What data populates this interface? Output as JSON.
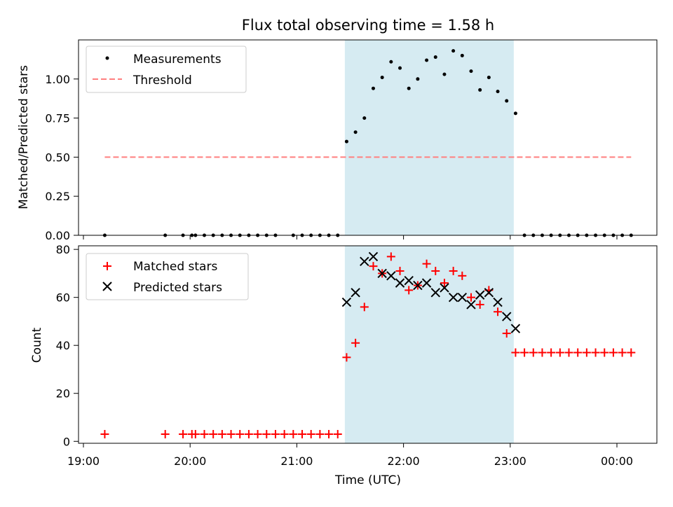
{
  "chart_data": {
    "type": "scatter",
    "title": "Flux total observing time = 1.58 h",
    "xlabel": "Time (UTC)",
    "x_ticks": [
      "19:00",
      "20:00",
      "21:00",
      "22:00",
      "23:00",
      "00:00"
    ],
    "highlight_span": {
      "start": "21:27",
      "end": "23:02",
      "color": "#add8e6"
    },
    "legend_position": "top-left",
    "colors": {
      "measurement": "#000000",
      "threshold": "#ff7f7f",
      "matched": "#ff0000",
      "predicted": "#000000"
    },
    "panels": [
      {
        "ylabel": "Matched/Predicted stars",
        "ylim": [
          0,
          1.25
        ],
        "y_ticks": [
          "0.00",
          "0.25",
          "0.50",
          "0.75",
          "1.00"
        ],
        "series": [
          {
            "name": "Measurements",
            "marker": "dot",
            "x": [
              "19:12",
              "19:46",
              "19:56",
              "20:01",
              "20:03",
              "20:08",
              "20:13",
              "20:18",
              "20:23",
              "20:28",
              "20:33",
              "20:38",
              "20:43",
              "20:48",
              "20:58",
              "21:03",
              "21:08",
              "21:13",
              "21:18",
              "21:23",
              "21:28",
              "21:33",
              "21:38",
              "21:43",
              "21:48",
              "21:53",
              "21:58",
              "22:03",
              "22:08",
              "22:13",
              "22:18",
              "22:23",
              "22:28",
              "22:33",
              "22:38",
              "22:43",
              "22:48",
              "22:53",
              "22:58",
              "23:03",
              "23:08",
              "23:13",
              "23:18",
              "23:23",
              "23:28",
              "23:33",
              "23:38",
              "23:43",
              "23:48",
              "23:53",
              "23:58",
              "00:03",
              "00:08"
            ],
            "y": [
              0,
              0,
              0,
              0,
              0,
              0,
              0,
              0,
              0,
              0,
              0,
              0,
              0,
              0,
              0,
              0,
              0,
              0,
              0,
              0,
              0.6,
              0.66,
              0.75,
              0.94,
              1.01,
              1.11,
              1.07,
              0.94,
              1.0,
              1.12,
              1.14,
              1.03,
              1.18,
              1.15,
              1.05,
              0.93,
              1.01,
              0.92,
              0.86,
              0.78,
              0,
              0,
              0,
              0,
              0,
              0,
              0,
              0,
              0,
              0,
              0,
              0,
              0
            ]
          },
          {
            "name": "Threshold",
            "marker": "dashed-line",
            "x": [
              "19:12",
              "00:08"
            ],
            "y": [
              0.5,
              0.5
            ]
          }
        ]
      },
      {
        "ylabel": "Count",
        "ylim": [
          0,
          80
        ],
        "y_ticks": [
          "0",
          "20",
          "40",
          "60",
          "80"
        ],
        "series": [
          {
            "name": "Matched stars",
            "marker": "plus",
            "x": [
              "19:12",
              "19:46",
              "19:56",
              "20:01",
              "20:03",
              "20:08",
              "20:13",
              "20:18",
              "20:23",
              "20:28",
              "20:33",
              "20:38",
              "20:43",
              "20:48",
              "20:53",
              "20:58",
              "21:03",
              "21:08",
              "21:13",
              "21:18",
              "21:23",
              "21:28",
              "21:33",
              "21:38",
              "21:43",
              "21:48",
              "21:53",
              "21:58",
              "22:03",
              "22:08",
              "22:13",
              "22:18",
              "22:23",
              "22:28",
              "22:33",
              "22:38",
              "22:43",
              "22:48",
              "22:53",
              "22:58",
              "23:03",
              "23:08",
              "23:13",
              "23:18",
              "23:23",
              "23:28",
              "23:33",
              "23:38",
              "23:43",
              "23:48",
              "23:53",
              "23:58",
              "00:03",
              "00:08"
            ],
            "y": [
              3,
              3,
              3,
              3,
              3,
              3,
              3,
              3,
              3,
              3,
              3,
              3,
              3,
              3,
              3,
              3,
              3,
              3,
              3,
              3,
              3,
              35,
              41,
              56,
              73,
              70,
              77,
              71,
              63,
              65,
              74,
              71,
              66,
              71,
              69,
              60,
              57,
              63,
              54,
              45,
              37,
              37,
              37,
              37,
              37,
              37,
              37,
              37,
              37,
              37,
              37,
              37,
              37,
              37
            ]
          },
          {
            "name": "Predicted stars",
            "marker": "x",
            "x": [
              "21:28",
              "21:33",
              "21:38",
              "21:43",
              "21:48",
              "21:53",
              "21:58",
              "22:03",
              "22:08",
              "22:13",
              "22:18",
              "22:23",
              "22:28",
              "22:33",
              "22:38",
              "22:43",
              "22:48",
              "22:53",
              "22:58",
              "23:03"
            ],
            "y": [
              58,
              62,
              75,
              77,
              70,
              69,
              66,
              67,
              65,
              66,
              62,
              64,
              60,
              60,
              57,
              61,
              62,
              58,
              52,
              47
            ]
          }
        ]
      }
    ]
  }
}
